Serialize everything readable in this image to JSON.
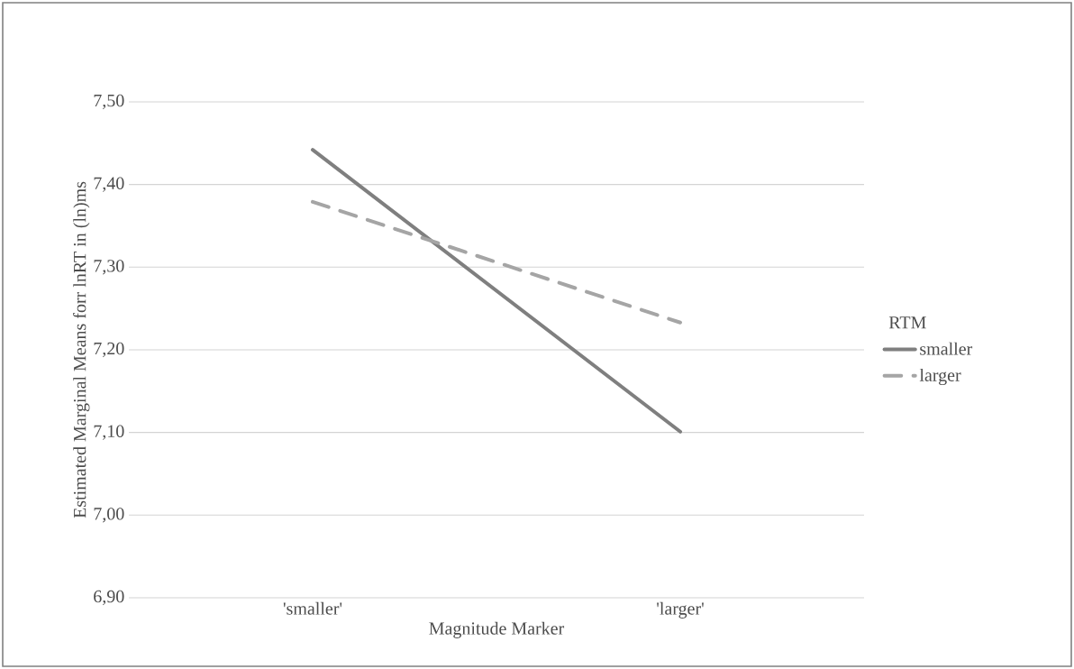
{
  "chart_data": {
    "type": "line",
    "xlabel": "Magnitude Marker",
    "ylabel": "Estimated Marginal Means forr lnRT in (ln)ms",
    "legend_title": "RTM",
    "categories": [
      "'smaller'",
      "'larger'"
    ],
    "series": [
      {
        "name": "smaller",
        "color": "#7f7f7f",
        "values": [
          7.442,
          7.101
        ],
        "line_style": "solid"
      },
      {
        "name": "larger",
        "color": "#a5a5a5",
        "values": [
          7.379,
          7.233
        ],
        "line_style": "dashed"
      }
    ],
    "ylim": [
      6.9,
      7.5
    ],
    "yticks": [
      {
        "value": 6.9,
        "label": "6,90"
      },
      {
        "value": 7.0,
        "label": "7,00"
      },
      {
        "value": 7.1,
        "label": "7,10"
      },
      {
        "value": 7.2,
        "label": "7,20"
      },
      {
        "value": 7.3,
        "label": "7,30"
      },
      {
        "value": 7.4,
        "label": "7,40"
      },
      {
        "value": 7.5,
        "label": "7,50"
      }
    ],
    "grid": "y",
    "legend": "right",
    "marker": "none"
  }
}
